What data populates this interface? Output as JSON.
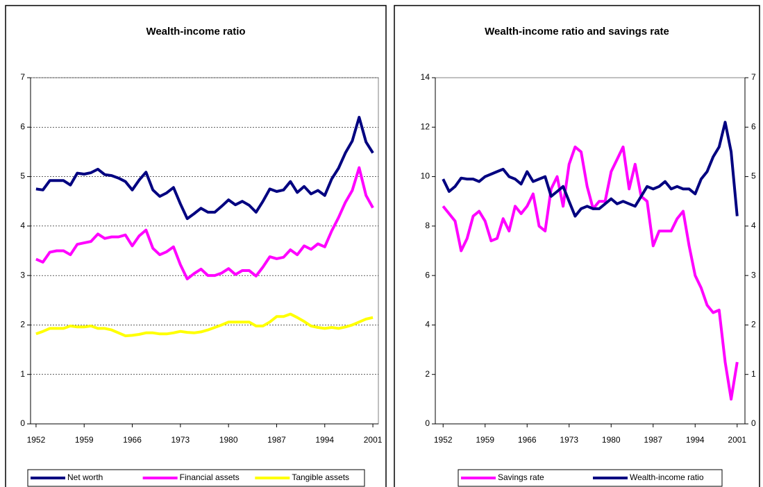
{
  "chart_data": [
    {
      "type": "line",
      "title": "Wealth-income ratio",
      "x": [
        1952,
        1953,
        1954,
        1955,
        1956,
        1957,
        1958,
        1959,
        1960,
        1961,
        1962,
        1963,
        1964,
        1965,
        1966,
        1967,
        1968,
        1969,
        1970,
        1971,
        1972,
        1973,
        1974,
        1975,
        1976,
        1977,
        1978,
        1979,
        1980,
        1981,
        1982,
        1983,
        1984,
        1985,
        1986,
        1987,
        1988,
        1989,
        1990,
        1991,
        1992,
        1993,
        1994,
        1995,
        1996,
        1997,
        1998,
        1999,
        2000,
        2001
      ],
      "series": [
        {
          "name": "Net worth",
          "color": "#000080",
          "values": [
            4.75,
            4.73,
            4.92,
            4.92,
            4.92,
            4.83,
            5.07,
            5.05,
            5.08,
            5.15,
            5.04,
            5.02,
            4.97,
            4.9,
            4.73,
            4.93,
            5.09,
            4.73,
            4.6,
            4.67,
            4.78,
            4.45,
            4.15,
            4.25,
            4.36,
            4.28,
            4.28,
            4.4,
            4.53,
            4.43,
            4.5,
            4.42,
            4.28,
            4.5,
            4.75,
            4.7,
            4.73,
            4.9,
            4.68,
            4.8,
            4.65,
            4.72,
            4.62,
            4.95,
            5.17,
            5.48,
            5.72,
            6.2,
            5.7,
            5.48
          ]
        },
        {
          "name": "Financial assets",
          "color": "#ff00ff",
          "values": [
            3.33,
            3.27,
            3.47,
            3.5,
            3.5,
            3.42,
            3.63,
            3.66,
            3.69,
            3.84,
            3.75,
            3.78,
            3.78,
            3.82,
            3.6,
            3.8,
            3.92,
            3.55,
            3.42,
            3.48,
            3.58,
            3.22,
            2.93,
            3.04,
            3.13,
            3.0,
            3.0,
            3.05,
            3.14,
            3.02,
            3.1,
            3.1,
            2.99,
            3.17,
            3.38,
            3.34,
            3.37,
            3.52,
            3.42,
            3.6,
            3.53,
            3.64,
            3.58,
            3.9,
            4.17,
            4.48,
            4.72,
            5.18,
            4.62,
            4.37
          ]
        },
        {
          "name": "Tangible assets",
          "color": "#ffff00",
          "values": [
            1.82,
            1.87,
            1.93,
            1.93,
            1.93,
            1.98,
            1.96,
            1.96,
            1.98,
            1.93,
            1.93,
            1.9,
            1.84,
            1.78,
            1.79,
            1.81,
            1.84,
            1.84,
            1.82,
            1.82,
            1.84,
            1.87,
            1.85,
            1.84,
            1.86,
            1.9,
            1.95,
            2.0,
            2.06,
            2.06,
            2.06,
            2.06,
            1.98,
            1.98,
            2.06,
            2.17,
            2.17,
            2.22,
            2.15,
            2.07,
            1.98,
            1.95,
            1.93,
            1.95,
            1.93,
            1.96,
            2.0,
            2.06,
            2.12,
            2.15
          ]
        }
      ],
      "xlim": [
        1951.2,
        2001.8
      ],
      "xticks": [
        1952,
        1959,
        1966,
        1973,
        1980,
        1987,
        1994,
        2001
      ],
      "ylim": [
        0,
        7
      ],
      "yticks": [
        0,
        1,
        2,
        3,
        4,
        5,
        6,
        7
      ],
      "grid": true,
      "legend": "bottom"
    },
    {
      "type": "line",
      "title": "Wealth-income ratio and savings rate",
      "x": [
        1952,
        1953,
        1954,
        1955,
        1956,
        1957,
        1958,
        1959,
        1960,
        1961,
        1962,
        1963,
        1964,
        1965,
        1966,
        1967,
        1968,
        1969,
        1970,
        1971,
        1972,
        1973,
        1974,
        1975,
        1976,
        1977,
        1978,
        1979,
        1980,
        1981,
        1982,
        1983,
        1984,
        1985,
        1986,
        1987,
        1988,
        1989,
        1990,
        1991,
        1992,
        1993,
        1994,
        1995,
        1996,
        1997,
        1998,
        1999,
        2000,
        2001
      ],
      "series": [
        {
          "name": "Savings rate",
          "color": "#ff00ff",
          "values": [
            8.8,
            8.5,
            8.2,
            7.0,
            7.5,
            8.4,
            8.6,
            8.2,
            7.4,
            7.5,
            8.3,
            7.8,
            8.8,
            8.5,
            8.8,
            9.3,
            8.0,
            7.8,
            9.5,
            10.0,
            8.8,
            10.5,
            11.2,
            11.0,
            9.6,
            8.7,
            9.0,
            9.0,
            10.2,
            10.7,
            11.2,
            9.5,
            10.5,
            9.2,
            9.0,
            7.2,
            7.8,
            7.8,
            7.8,
            8.3,
            8.6,
            7.2,
            6.0,
            5.5,
            4.8,
            4.5,
            4.6,
            2.5,
            1.0,
            2.5
          ]
        },
        {
          "name": "Wealth-income ratio",
          "color": "#000080",
          "axis": "y2",
          "values": [
            4.95,
            4.7,
            4.8,
            4.97,
            4.95,
            4.95,
            4.9,
            5.0,
            5.05,
            5.1,
            5.15,
            5.0,
            4.95,
            4.85,
            5.1,
            4.9,
            4.95,
            5.0,
            4.6,
            4.7,
            4.8,
            4.5,
            4.2,
            4.35,
            4.4,
            4.35,
            4.35,
            4.45,
            4.55,
            4.45,
            4.5,
            4.45,
            4.4,
            4.6,
            4.8,
            4.75,
            4.8,
            4.9,
            4.75,
            4.8,
            4.75,
            4.75,
            4.65,
            4.95,
            5.1,
            5.4,
            5.6,
            6.1,
            5.5,
            4.2
          ]
        }
      ],
      "xlim": [
        1950.7,
        2002.3
      ],
      "xticks": [
        1952,
        1959,
        1966,
        1973,
        1980,
        1987,
        1994,
        2001
      ],
      "ylim": [
        0,
        14
      ],
      "yticks": [
        0,
        2,
        4,
        6,
        8,
        10,
        12,
        14
      ],
      "y2lim": [
        0,
        7
      ],
      "y2ticks": [
        0,
        1,
        2,
        3,
        4,
        5,
        6,
        7
      ],
      "grid": false,
      "legend": "bottom"
    }
  ]
}
